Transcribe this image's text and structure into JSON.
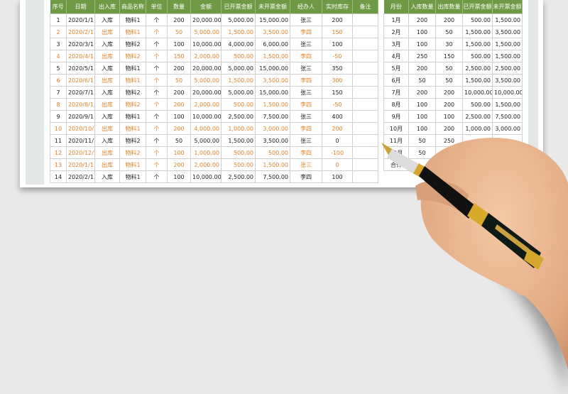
{
  "left_table": {
    "headers": [
      "序号",
      "日期",
      "出入库",
      "商品名称",
      "单位",
      "数量",
      "金额",
      "已开票金额",
      "未开票金额",
      "经办人",
      "实时库存",
      "备注"
    ],
    "rows": [
      [
        "1",
        "2020/1/1",
        "入库",
        "物料1",
        "个",
        "200",
        "20,000.00",
        "5,000.00",
        "15,000.00",
        "张三",
        "200",
        ""
      ],
      [
        "2",
        "2020/2/1",
        "出库",
        "物料1",
        "个",
        "50",
        "5,000.00",
        "1,500.00",
        "3,500.00",
        "李四",
        "150",
        ""
      ],
      [
        "3",
        "2020/3/1",
        "入库",
        "物料2",
        "个",
        "100",
        "10,000.00",
        "4,000.00",
        "6,000.00",
        "张三",
        "100",
        ""
      ],
      [
        "4",
        "2020/4/1",
        "出库",
        "物料2",
        "个",
        "150",
        "2,000.00",
        "500.00",
        "1,500.00",
        "李四",
        "-50",
        ""
      ],
      [
        "5",
        "2020/5/1",
        "入库",
        "物料1",
        "个",
        "200",
        "20,000.00",
        "5,000.00",
        "15,000.00",
        "张三",
        "350",
        ""
      ],
      [
        "6",
        "2020/6/1",
        "出库",
        "物料1",
        "个",
        "50",
        "5,000.00",
        "1,500.00",
        "3,500.00",
        "李四",
        "300",
        ""
      ],
      [
        "7",
        "2020/7/1",
        "入库",
        "物料2",
        "个",
        "200",
        "20,000.00",
        "5,000.00",
        "15,000.00",
        "张三",
        "150",
        ""
      ],
      [
        "8",
        "2020/8/1",
        "出库",
        "物料2",
        "个",
        "200",
        "2,000.00",
        "500.00",
        "1,500.00",
        "李四",
        "-50",
        ""
      ],
      [
        "9",
        "2020/9/1",
        "入库",
        "物料1",
        "个",
        "100",
        "10,000.00",
        "2,500.00",
        "7,500.00",
        "张三",
        "400",
        ""
      ],
      [
        "10",
        "2020/10/1",
        "出库",
        "物料1",
        "个",
        "200",
        "4,000.00",
        "1,000.00",
        "3,000.00",
        "李四",
        "200",
        ""
      ],
      [
        "11",
        "2020/11/1",
        "入库",
        "物料2",
        "个",
        "50",
        "5,000.00",
        "1,500.00",
        "3,500.00",
        "张三",
        "0",
        ""
      ],
      [
        "12",
        "2020/12/1",
        "出库",
        "物料2",
        "个",
        "100",
        "1,000.00",
        "500.00",
        "500.00",
        "李四",
        "-100",
        ""
      ],
      [
        "13",
        "2020/1/1",
        "出库",
        "物料1",
        "个",
        "200",
        "2,000.00",
        "500.00",
        "1,500.00",
        "张三",
        "0",
        ""
      ],
      [
        "14",
        "2020/2/1",
        "入库",
        "物料1",
        "个",
        "100",
        "10,000.00",
        "2,500.00",
        "7,500.00",
        "李四",
        "100",
        ""
      ]
    ]
  },
  "right_table": {
    "headers": [
      "月份",
      "入库数量",
      "出库数量",
      "已开票金额",
      "未开票金额"
    ],
    "rows": [
      [
        "1月",
        "200",
        "200",
        "500.00",
        "1,500.00"
      ],
      [
        "2月",
        "100",
        "50",
        "1,500.00",
        "3,500.00"
      ],
      [
        "3月",
        "100",
        "30",
        "1,500.00",
        "1,500.00"
      ],
      [
        "4月",
        "250",
        "150",
        "500.00",
        "1,500.00"
      ],
      [
        "5月",
        "200",
        "50",
        "2,500.00",
        "2,500.00"
      ],
      [
        "6月",
        "50",
        "50",
        "1,500.00",
        "3,500.00"
      ],
      [
        "7月",
        "200",
        "200",
        "10,000.00",
        "10,000.00"
      ],
      [
        "8月",
        "100",
        "200",
        "500.00",
        "1,500.00"
      ],
      [
        "9月",
        "100",
        "100",
        "2,500.00",
        "7,500.00"
      ],
      [
        "10月",
        "100",
        "200",
        "1,000.00",
        "3,000.00"
      ],
      [
        "11月",
        "50",
        "250",
        "",
        ""
      ],
      [
        "12月",
        "50",
        "",
        "",
        ""
      ],
      [
        "合计",
        "",
        "",
        "",
        ""
      ]
    ]
  },
  "colors": {
    "header_green": "#6f9a45",
    "out_row_orange": "#e0832a",
    "background": "#e9e9e9"
  },
  "decoration": "hand-holding-fountain-pen"
}
